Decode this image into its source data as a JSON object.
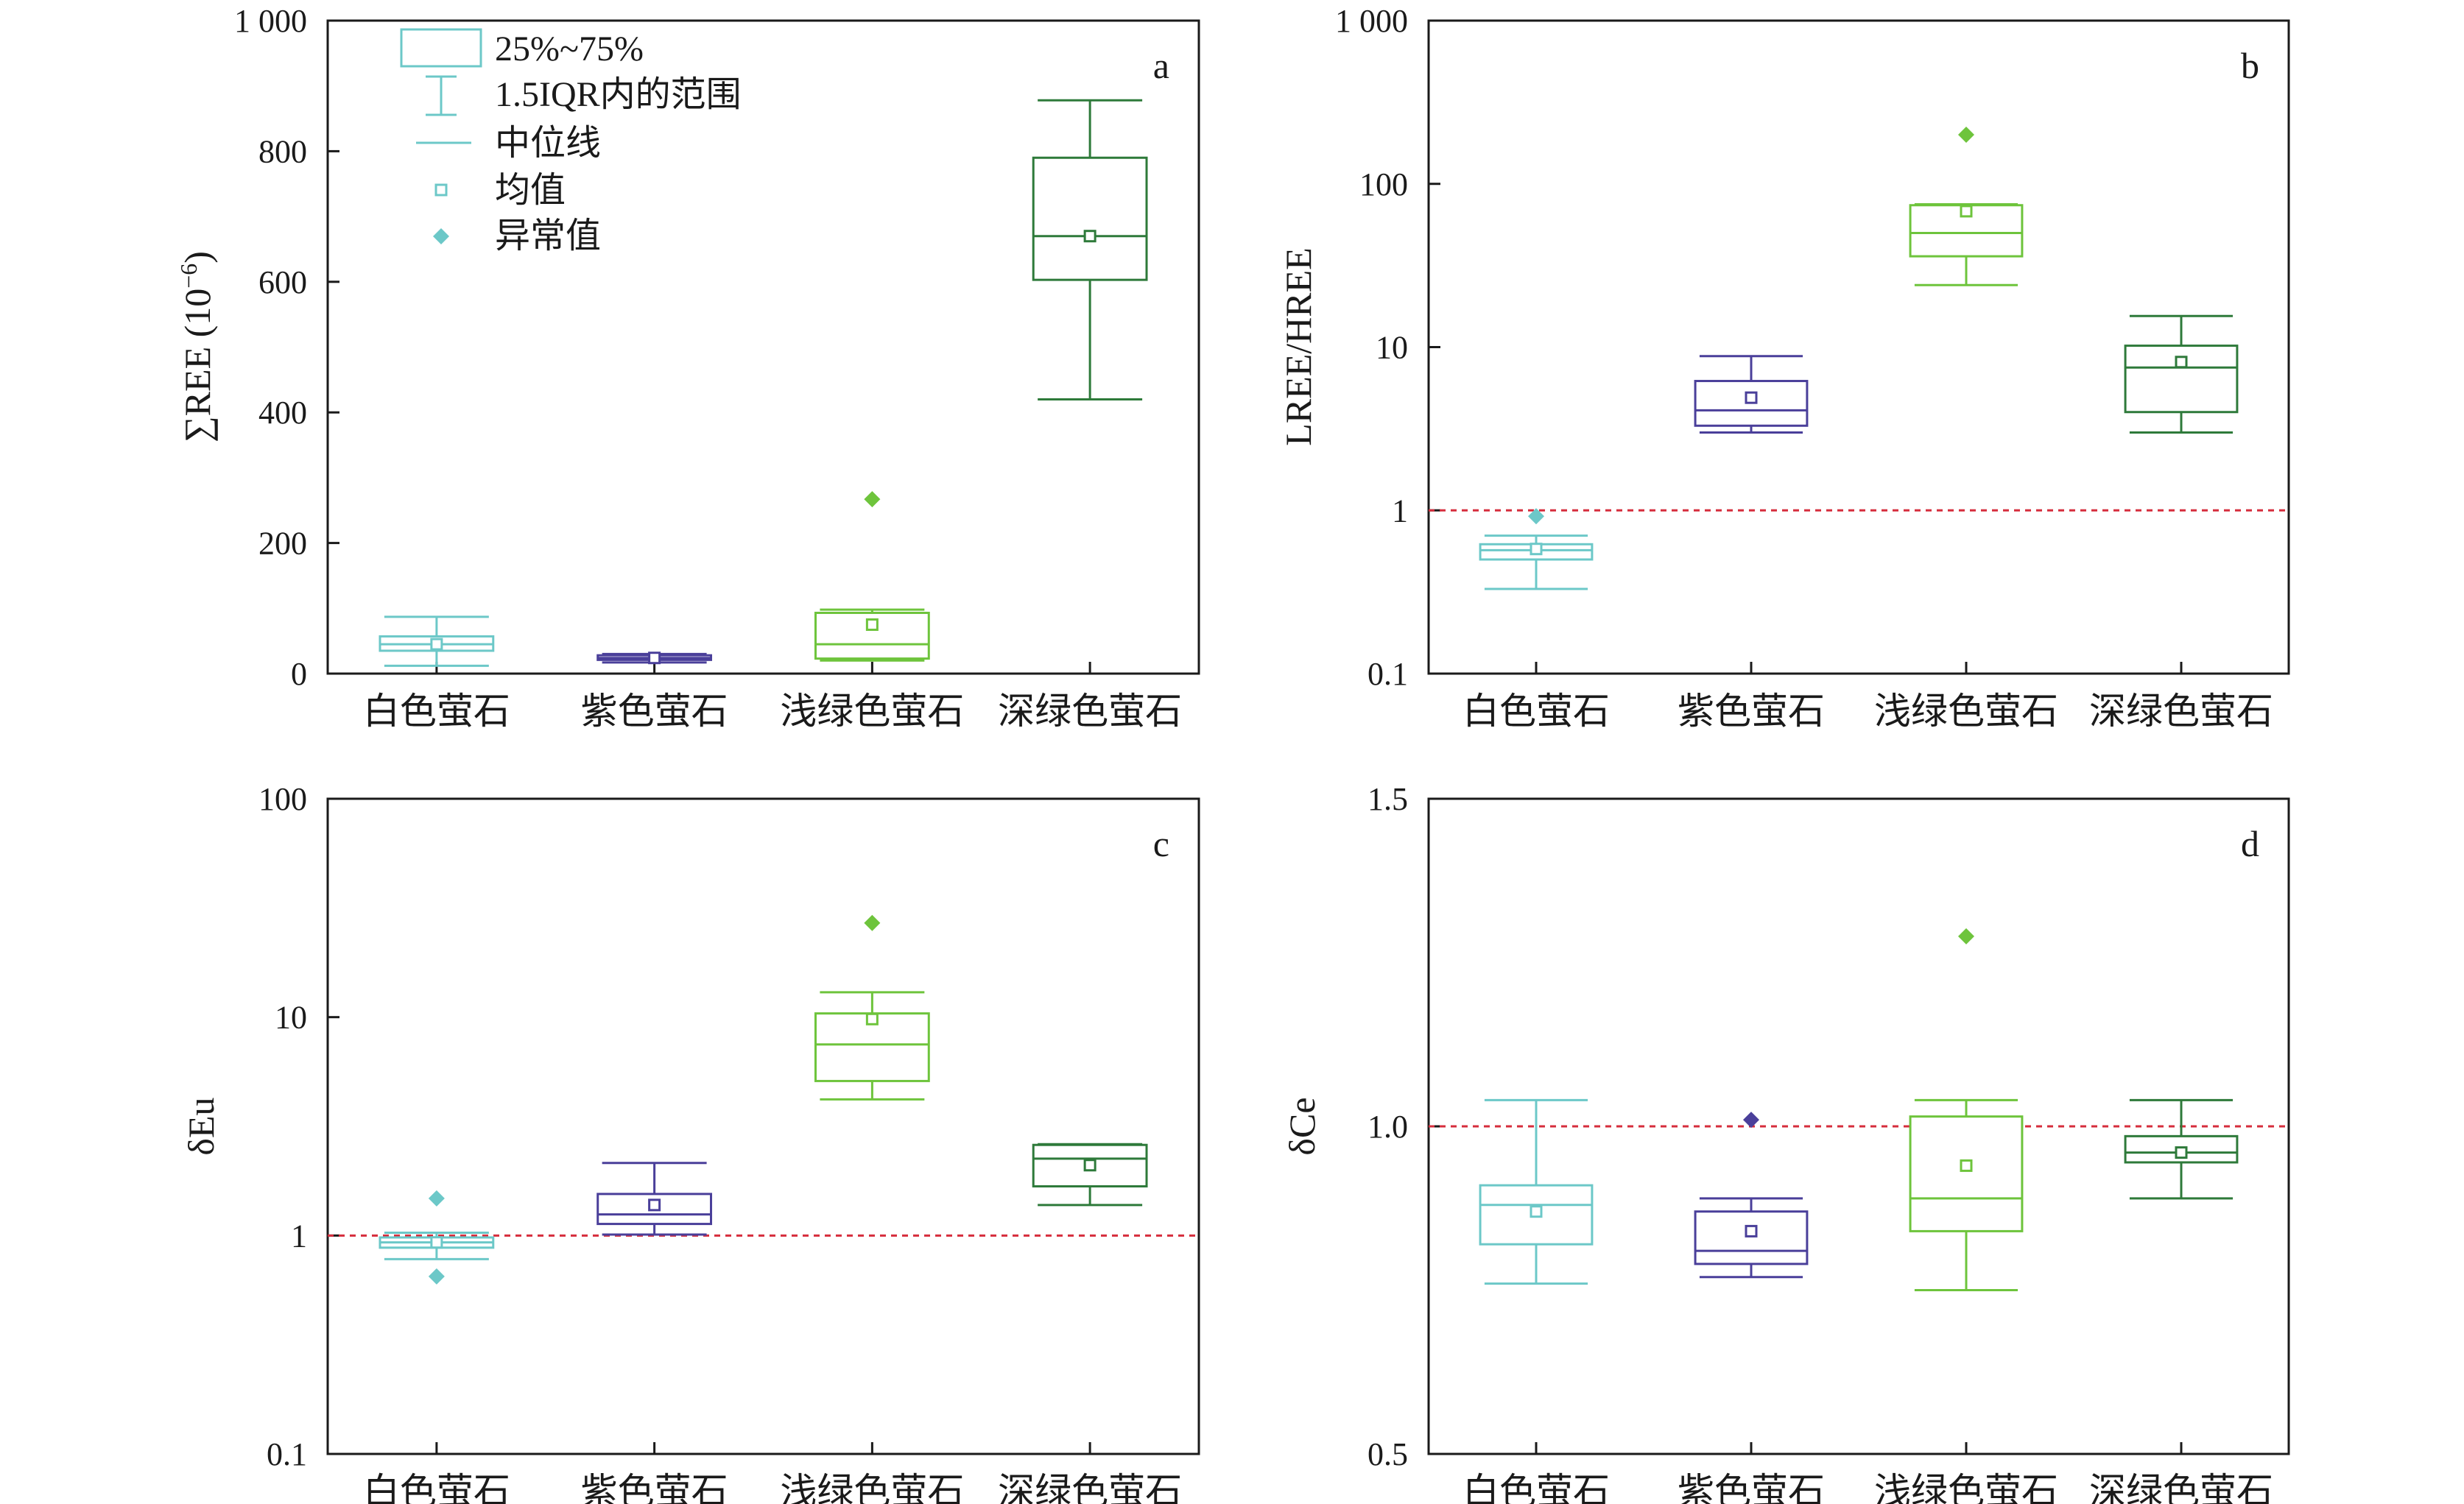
{
  "colors": {
    "white": "#6cc8c8",
    "purple": "#4a3f9a",
    "lightgreen": "#6ec43c",
    "darkgreen": "#2e7a3a",
    "reference_line": "#d62d3c"
  },
  "legend": {
    "box": "25%~75%",
    "whisker": "1.5IQR内的范围",
    "median": "中位线",
    "mean": "均值",
    "outlier": "异常值"
  },
  "chart_data": [
    {
      "id": "a",
      "type": "box",
      "panel_label": "a",
      "ylabel_main": "∑REE (10",
      "ylabel_sup": "−6",
      "ylabel_tail": ")",
      "scale": "linear",
      "ylim": [
        0,
        1000
      ],
      "yticks": [
        0,
        200,
        400,
        600,
        800,
        1000
      ],
      "ytick_labels": [
        "0",
        "200",
        "400",
        "600",
        "800",
        "1 000"
      ],
      "categories": [
        "白色萤石",
        "紫色萤石",
        "浅绿色萤石",
        "深绿色萤石"
      ],
      "boxes": [
        {
          "color": "white",
          "q1": 35,
          "median": 45,
          "q3": 57,
          "whisker_low": 12,
          "whisker_high": 87,
          "mean": 45,
          "outliers": []
        },
        {
          "color": "purple",
          "q1": 21,
          "median": 24,
          "q3": 28,
          "whisker_low": 17,
          "whisker_high": 30,
          "mean": 24,
          "outliers": []
        },
        {
          "color": "lightgreen",
          "q1": 23,
          "median": 45,
          "q3": 93,
          "whisker_low": 20,
          "whisker_high": 98,
          "mean": 75,
          "outliers": [
            267
          ]
        },
        {
          "color": "darkgreen",
          "q1": 603,
          "median": 670,
          "q3": 790,
          "whisker_low": 420,
          "whisker_high": 878,
          "mean": 670,
          "outliers": []
        }
      ],
      "reference_line": null
    },
    {
      "id": "b",
      "type": "box",
      "panel_label": "b",
      "ylabel_main": "LREE/HREE",
      "ylabel_sup": "",
      "ylabel_tail": "",
      "scale": "log",
      "ylim": [
        0.1,
        1000
      ],
      "yticks": [
        0.1,
        1,
        10,
        100,
        1000
      ],
      "ytick_labels": [
        "0.1",
        "1",
        "10",
        "100",
        "1 000"
      ],
      "categories": [
        "白色萤石",
        "紫色萤石",
        "浅绿色萤石",
        "深绿色萤石"
      ],
      "boxes": [
        {
          "color": "white",
          "q1": 0.5,
          "median": 0.57,
          "q3": 0.62,
          "whisker_low": 0.33,
          "whisker_high": 0.7,
          "mean": 0.58,
          "outliers": [
            0.92
          ]
        },
        {
          "color": "purple",
          "q1": 3.3,
          "median": 4.1,
          "q3": 6.2,
          "whisker_low": 3.0,
          "whisker_high": 8.8,
          "mean": 4.9,
          "outliers": []
        },
        {
          "color": "lightgreen",
          "q1": 36,
          "median": 50,
          "q3": 74,
          "whisker_low": 24,
          "whisker_high": 75,
          "mean": 68,
          "outliers": [
            200
          ]
        },
        {
          "color": "darkgreen",
          "q1": 4.0,
          "median": 7.5,
          "q3": 10.2,
          "whisker_low": 3.0,
          "whisker_high": 15.5,
          "mean": 8.1,
          "outliers": []
        }
      ],
      "reference_line": 1
    },
    {
      "id": "c",
      "type": "box",
      "panel_label": "c",
      "ylabel_main": "δEu",
      "ylabel_sup": "",
      "ylabel_tail": "",
      "scale": "log",
      "ylim": [
        0.1,
        100
      ],
      "yticks": [
        0.1,
        1,
        10,
        100
      ],
      "ytick_labels": [
        "0.1",
        "1",
        "10",
        "100"
      ],
      "categories": [
        "白色萤石",
        "紫色萤石",
        "浅绿色萤石",
        "深绿色萤石"
      ],
      "boxes": [
        {
          "color": "white",
          "q1": 0.88,
          "median": 0.93,
          "q3": 0.98,
          "whisker_low": 0.78,
          "whisker_high": 1.03,
          "mean": 0.93,
          "outliers": [
            1.48,
            0.65
          ]
        },
        {
          "color": "purple",
          "q1": 1.13,
          "median": 1.25,
          "q3": 1.55,
          "whisker_low": 1.01,
          "whisker_high": 2.15,
          "mean": 1.38,
          "outliers": []
        },
        {
          "color": "lightgreen",
          "q1": 5.1,
          "median": 7.5,
          "q3": 10.4,
          "whisker_low": 4.2,
          "whisker_high": 13.0,
          "mean": 9.8,
          "outliers": [
            27
          ]
        },
        {
          "color": "darkgreen",
          "q1": 1.68,
          "median": 2.25,
          "q3": 2.6,
          "whisker_low": 1.38,
          "whisker_high": 2.62,
          "mean": 2.1,
          "outliers": []
        }
      ],
      "reference_line": 1
    },
    {
      "id": "d",
      "type": "box",
      "panel_label": "d",
      "ylabel_main": "δCe",
      "ylabel_sup": "",
      "ylabel_tail": "",
      "scale": "linear",
      "ylim": [
        0.5,
        1.5
      ],
      "yticks": [
        0.5,
        1.0,
        1.5
      ],
      "ytick_labels": [
        "0.5",
        "1.0",
        "1.5"
      ],
      "categories": [
        "白色萤石",
        "紫色萤石",
        "浅绿色萤石",
        "深绿色萤石"
      ],
      "boxes": [
        {
          "color": "white",
          "q1": 0.82,
          "median": 0.88,
          "q3": 0.91,
          "whisker_low": 0.76,
          "whisker_high": 1.04,
          "mean": 0.87,
          "outliers": []
        },
        {
          "color": "purple",
          "q1": 0.79,
          "median": 0.81,
          "q3": 0.87,
          "whisker_low": 0.77,
          "whisker_high": 0.89,
          "mean": 0.84,
          "outliers": [
            1.01
          ]
        },
        {
          "color": "lightgreen",
          "q1": 0.84,
          "median": 0.89,
          "q3": 1.015,
          "whisker_low": 0.75,
          "whisker_high": 1.04,
          "mean": 0.94,
          "outliers": [
            1.29
          ]
        },
        {
          "color": "darkgreen",
          "q1": 0.945,
          "median": 0.96,
          "q3": 0.985,
          "whisker_low": 0.89,
          "whisker_high": 1.04,
          "mean": 0.96,
          "outliers": []
        }
      ],
      "reference_line": 1
    }
  ]
}
